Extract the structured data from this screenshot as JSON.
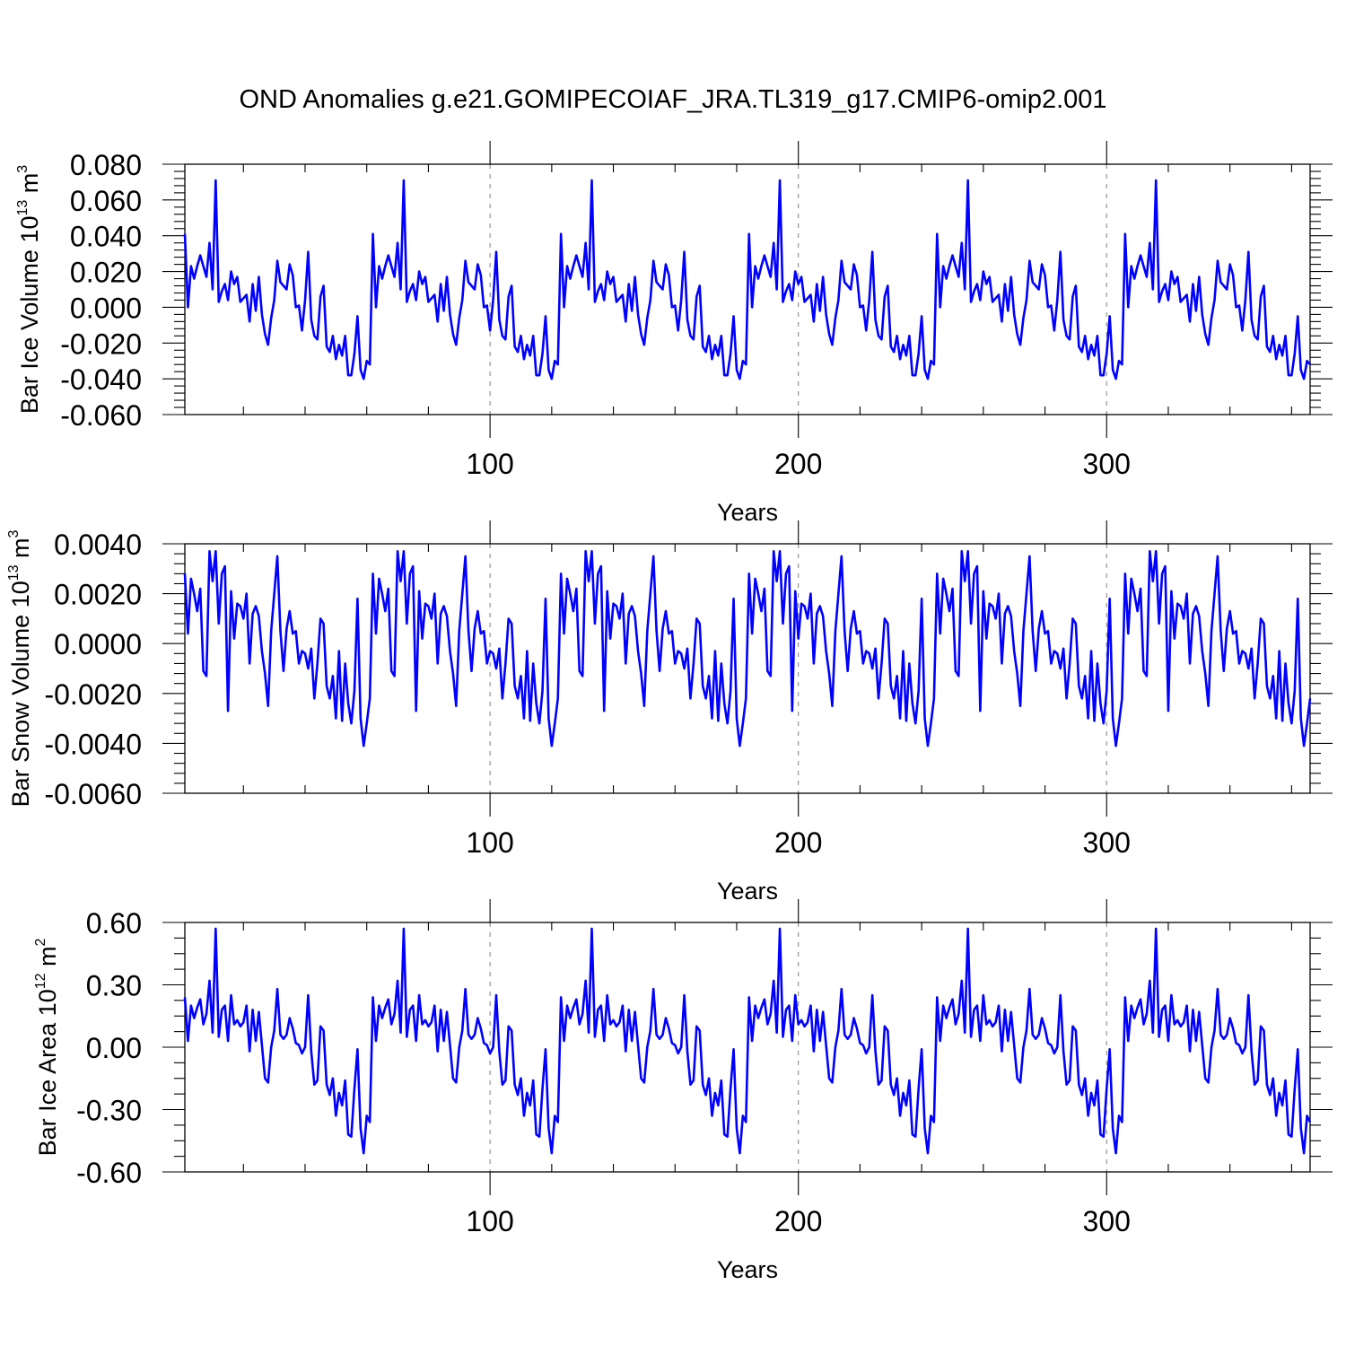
{
  "title": "OND Anomalies g.e21.GOMIPECOIAF_JRA.TL319_g17.CMIP6-omip2.001",
  "line_color": "#0000ff",
  "chart_data": [
    {
      "type": "line",
      "ylabel": "Bar Ice Volume 10",
      "ylabel_exp": "13",
      "ylabel_unit": "m",
      "ylabel_unit_exp": "3",
      "xlabel": "Years",
      "xlim": [
        1,
        366
      ],
      "ylim": [
        -0.06,
        0.08
      ],
      "x_ticks": [
        100,
        200,
        300
      ],
      "x_tick_labels": [
        "100",
        "200",
        "300"
      ],
      "y_ticks": [
        -0.06,
        -0.04,
        -0.02,
        0.0,
        0.02,
        0.04,
        0.06,
        0.08
      ],
      "y_tick_labels": [
        "-0.060",
        "-0.040",
        "-0.020",
        "0.000",
        "0.020",
        "0.040",
        "0.060",
        "0.080"
      ],
      "gridlines_x": [
        100,
        200,
        300
      ],
      "period": 61,
      "cycle": [
        0.041,
        0.0,
        0.023,
        0.016,
        0.023,
        0.029,
        0.023,
        0.017,
        0.036,
        0.01,
        0.071,
        0.003,
        0.009,
        0.013,
        0.004,
        0.02,
        0.013,
        0.017,
        0.003,
        0.005,
        0.007,
        -0.008,
        0.013,
        -0.002,
        0.017,
        -0.004,
        -0.015,
        -0.021,
        -0.006,
        0.004,
        0.026,
        0.014,
        0.012,
        0.01,
        0.024,
        0.018,
        0.0,
        0.001,
        -0.013,
        0.004,
        0.031,
        -0.007,
        -0.016,
        -0.018,
        0.006,
        0.012,
        -0.022,
        -0.025,
        -0.016,
        -0.029,
        -0.021,
        -0.027,
        -0.016,
        -0.038,
        -0.038,
        -0.026,
        -0.005,
        -0.035,
        -0.04,
        -0.03,
        -0.032
      ],
      "values": []
    },
    {
      "type": "line",
      "ylabel": "Bar Snow Volume 10",
      "ylabel_exp": "13",
      "ylabel_unit": "m",
      "ylabel_unit_exp": "3",
      "xlabel": "Years",
      "xlim": [
        1,
        366
      ],
      "ylim": [
        -0.006,
        0.004
      ],
      "x_ticks": [
        100,
        200,
        300
      ],
      "x_tick_labels": [
        "100",
        "200",
        "300"
      ],
      "y_ticks": [
        -0.006,
        -0.004,
        -0.002,
        0.0,
        0.002,
        0.004
      ],
      "y_tick_labels": [
        "-0.0060",
        "-0.0040",
        "-0.0020",
        "0.0000",
        "0.0020",
        "0.0040"
      ],
      "gridlines_x": [
        100,
        200,
        300
      ],
      "period": 61,
      "cycle": [
        0.0028,
        0.0004,
        0.0026,
        0.002,
        0.0013,
        0.0022,
        -0.0011,
        -0.0013,
        0.0037,
        0.0025,
        0.0037,
        0.0008,
        0.0028,
        0.0031,
        -0.0027,
        0.0021,
        0.0002,
        0.0016,
        0.0015,
        0.001,
        0.002,
        -0.0008,
        0.0012,
        0.0015,
        0.0011,
        -0.0003,
        -0.0012,
        -0.0025,
        0.0005,
        0.002,
        0.0035,
        0.0005,
        -0.0011,
        0.0006,
        0.0013,
        0.0004,
        0.0005,
        -0.0008,
        -0.0003,
        -0.0004,
        -0.001,
        -0.0002,
        -0.0022,
        -0.0008,
        0.001,
        0.0008,
        -0.0017,
        -0.0022,
        -0.0013,
        -0.003,
        -0.0003,
        -0.0031,
        -0.0008,
        -0.0024,
        -0.0032,
        -0.0019,
        0.0018,
        -0.003,
        -0.0041,
        -0.0032,
        -0.0022
      ],
      "values": []
    },
    {
      "type": "line",
      "ylabel": "Bar Ice Area 10",
      "ylabel_exp": "12",
      "ylabel_unit": "m",
      "ylabel_unit_exp": "2",
      "xlabel": "Years",
      "xlim": [
        1,
        366
      ],
      "ylim": [
        -0.6,
        0.6
      ],
      "x_ticks": [
        100,
        200,
        300
      ],
      "x_tick_labels": [
        "100",
        "200",
        "300"
      ],
      "y_ticks": [
        -0.6,
        -0.3,
        0.0,
        0.3,
        0.6
      ],
      "y_tick_labels": [
        "-0.60",
        "-0.30",
        "0.00",
        "0.30",
        "0.60"
      ],
      "gridlines_x": [
        100,
        200,
        300
      ],
      "period": 61,
      "cycle": [
        0.24,
        0.03,
        0.2,
        0.14,
        0.19,
        0.23,
        0.11,
        0.16,
        0.32,
        0.07,
        0.57,
        0.05,
        0.18,
        0.2,
        0.03,
        0.25,
        0.11,
        0.13,
        0.1,
        0.12,
        0.2,
        -0.02,
        0.18,
        0.03,
        0.17,
        0.01,
        -0.15,
        -0.17,
        0.0,
        0.08,
        0.28,
        0.06,
        0.04,
        0.06,
        0.14,
        0.09,
        0.02,
        0.01,
        -0.03,
        0.0,
        0.25,
        -0.02,
        -0.18,
        -0.16,
        0.1,
        0.08,
        -0.18,
        -0.23,
        -0.15,
        -0.33,
        -0.22,
        -0.28,
        -0.16,
        -0.42,
        -0.43,
        -0.2,
        -0.01,
        -0.39,
        -0.51,
        -0.33,
        -0.36
      ],
      "values": []
    }
  ]
}
